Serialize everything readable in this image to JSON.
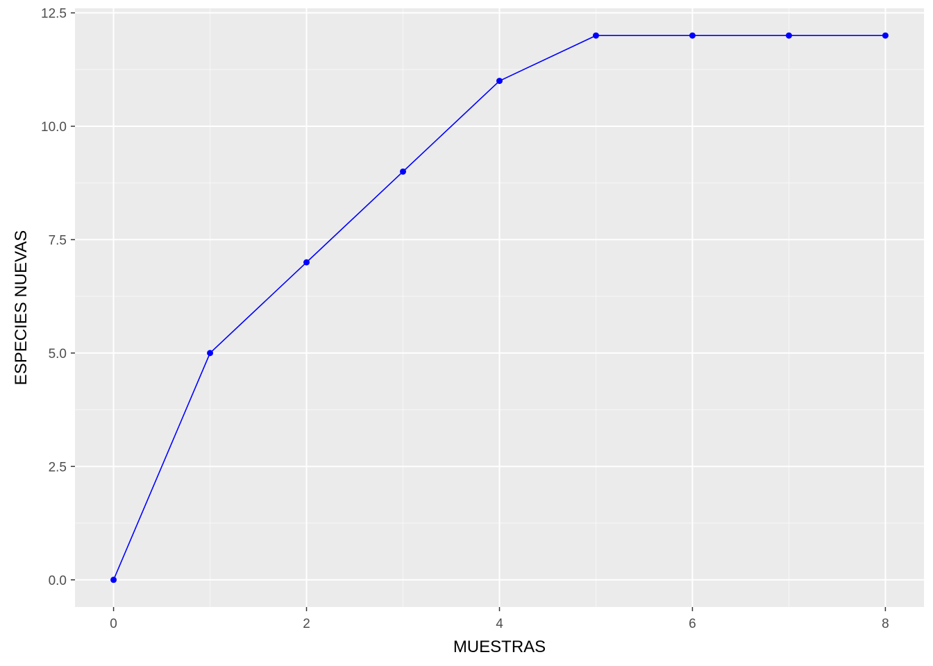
{
  "chart_data": {
    "type": "line",
    "title": "",
    "xlabel": "MUESTRAS",
    "ylabel": "ESPECIES NUEVAS",
    "xlim": [
      -0.4,
      8.4
    ],
    "ylim": [
      -0.6,
      12.6
    ],
    "x_ticks": [
      0,
      2,
      4,
      6,
      8
    ],
    "x_tick_labels": [
      "0",
      "2",
      "4",
      "6",
      "8"
    ],
    "y_ticks": [
      0,
      2.5,
      5,
      7.5,
      10,
      12.5
    ],
    "y_tick_labels": [
      "0.0",
      "2.5",
      "5.0",
      "7.5",
      "10.0",
      "12.5"
    ],
    "grid": true,
    "legend": "none",
    "colors": {
      "panel_background": "#ebebeb",
      "grid": "#ffffff",
      "series": "#0000ff"
    },
    "series": [
      {
        "x": [
          0,
          1,
          2,
          3,
          4,
          5,
          6,
          7,
          8
        ],
        "values": [
          0,
          5,
          7,
          9,
          11,
          12,
          12,
          12,
          12
        ]
      }
    ]
  }
}
